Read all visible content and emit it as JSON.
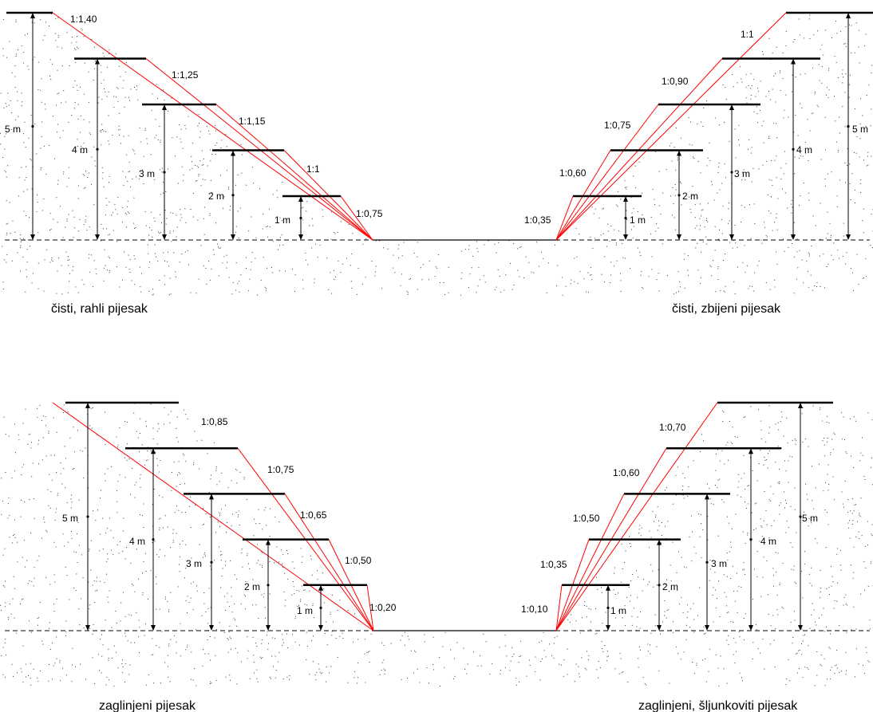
{
  "colors": {
    "slope_line": "#ff0000",
    "bench_line": "#000000",
    "dim_line": "#000000",
    "stipple": "#333333"
  },
  "panels": [
    {
      "side": "left",
      "caption": "čisti, rahli pijesak",
      "ratios": [
        "1:1,40",
        "1:1,25",
        "1:1,15",
        "1:1",
        "1:0,75"
      ],
      "heights": [
        "5 m",
        "4 m",
        "3 m",
        "2 m",
        "1 m"
      ]
    },
    {
      "side": "right",
      "caption": "čisti, zbijeni pijesak",
      "ratios": [
        "1:1",
        "1:0,90",
        "1:0,75",
        "1:0,60",
        "1:0,35"
      ],
      "heights": [
        "5 m",
        "4 m",
        "3 m",
        "2 m",
        "1 m"
      ]
    },
    {
      "side": "left",
      "caption": "zaglinjeni pijesak",
      "ratios": [
        "1:0,85",
        "1:0,75",
        "1:0,65",
        "1:0,50",
        "1:0,20"
      ],
      "heights": [
        "5 m",
        "4 m",
        "3 m",
        "2 m",
        "1 m"
      ]
    },
    {
      "side": "right",
      "caption": "zaglinjeni, šljunkoviti pijesak",
      "ratios": [
        "1:0,70",
        "1:0,60",
        "1:0,50",
        "1:0,35",
        "1:0,10"
      ],
      "heights": [
        "5 m",
        "4 m",
        "3 m",
        "2 m",
        "1 m"
      ]
    }
  ]
}
